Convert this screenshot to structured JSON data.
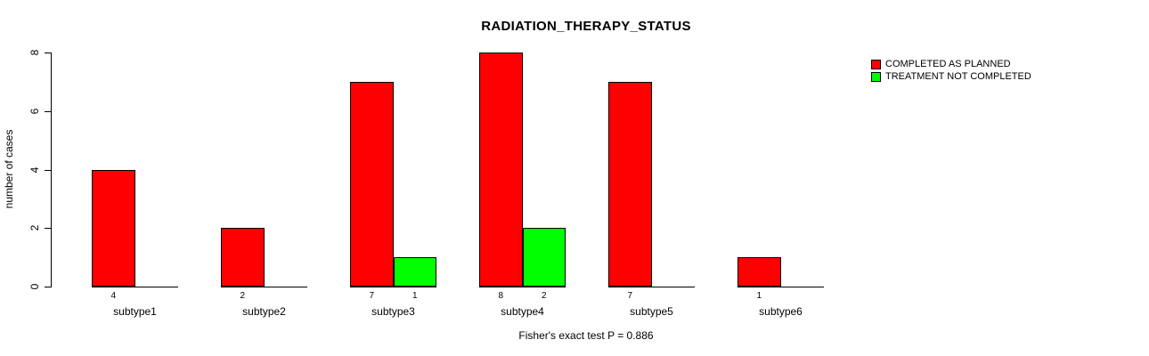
{
  "title": "RADIATION_THERAPY_STATUS",
  "ylabel": "number of cases",
  "caption": "Fisher's exact test P = 0.886",
  "colors": {
    "completed": "#ff0000",
    "not_completed": "#00ff00",
    "axis": "#000000"
  },
  "legend": {
    "items": [
      {
        "label": "COMPLETED AS PLANNED",
        "color": "#ff0000"
      },
      {
        "label": "TREATMENT NOT COMPLETED",
        "color": "#00ff00"
      }
    ]
  },
  "chart_data": {
    "type": "bar",
    "grouped": true,
    "title": "RADIATION_THERAPY_STATUS",
    "xlabel": "",
    "ylabel": "number of cases",
    "categories": [
      "subtype1",
      "subtype2",
      "subtype3",
      "subtype4",
      "subtype5",
      "subtype6"
    ],
    "series": [
      {
        "name": "COMPLETED AS PLANNED",
        "color": "#ff0000",
        "values": [
          4,
          2,
          7,
          8,
          7,
          1
        ]
      },
      {
        "name": "TREATMENT NOT COMPLETED",
        "color": "#00ff00",
        "values": [
          0,
          0,
          1,
          2,
          0,
          0
        ]
      }
    ],
    "bar_value_labels": [
      [
        "4",
        "2",
        "7",
        "8",
        "7",
        "1"
      ],
      [
        "",
        "",
        "1",
        "2",
        "",
        ""
      ]
    ],
    "ylim": [
      0,
      8
    ],
    "yticks": [
      0,
      2,
      4,
      6,
      8
    ],
    "grid": false,
    "legend_position": "top-right",
    "annotation": "Fisher's exact test P = 0.886"
  }
}
